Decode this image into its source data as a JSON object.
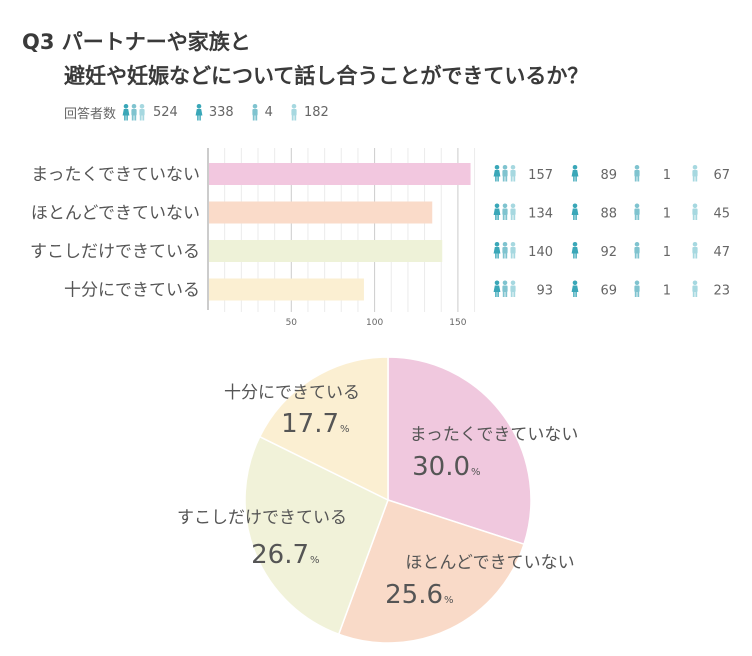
{
  "title": {
    "line1": "Q3 パートナーや家族と",
    "line2": "避妊や妊娠などについて話し合うことができているか？"
  },
  "totals": {
    "label": "回答者数",
    "values": [
      "524",
      "338",
      "4",
      "182"
    ]
  },
  "colors": {
    "icon_group": "#5bb3c4",
    "icon_female": "#3aa7b8",
    "icon_male": "#7fc3cf",
    "icon_other": "#a6d8e0"
  },
  "chart_data": [
    {
      "type": "bar",
      "orientation": "horizontal",
      "categories": [
        "まったくできていない",
        "ほとんどできていない",
        "すこしだけできている",
        "十分にできている"
      ],
      "values": [
        157,
        134,
        140,
        93
      ],
      "colors": [
        "#f2c7df",
        "#fadbc9",
        "#eef2d8",
        "#fbefd2"
      ],
      "xticks": [
        "50",
        "100",
        "150"
      ],
      "xlim": [
        0,
        160
      ],
      "grid": true,
      "breakdown": [
        [
          "157",
          "89",
          "1",
          "67"
        ],
        [
          "134",
          "88",
          "1",
          "45"
        ],
        [
          "140",
          "92",
          "1",
          "47"
        ],
        [
          "93",
          "69",
          "1",
          "23"
        ]
      ]
    },
    {
      "type": "pie",
      "labels": [
        "まったくできていない",
        "ほとんどできていない",
        "すこしだけできている",
        "十分にできている"
      ],
      "values": [
        30.0,
        25.6,
        26.7,
        17.7
      ],
      "pct_numbers": [
        "30.0",
        "25.6",
        "26.7",
        "17.7"
      ],
      "pct_sign": "%",
      "colors": [
        "#f0c8de",
        "#f9dac8",
        "#f1f2d9",
        "#fbefd2"
      ]
    }
  ]
}
